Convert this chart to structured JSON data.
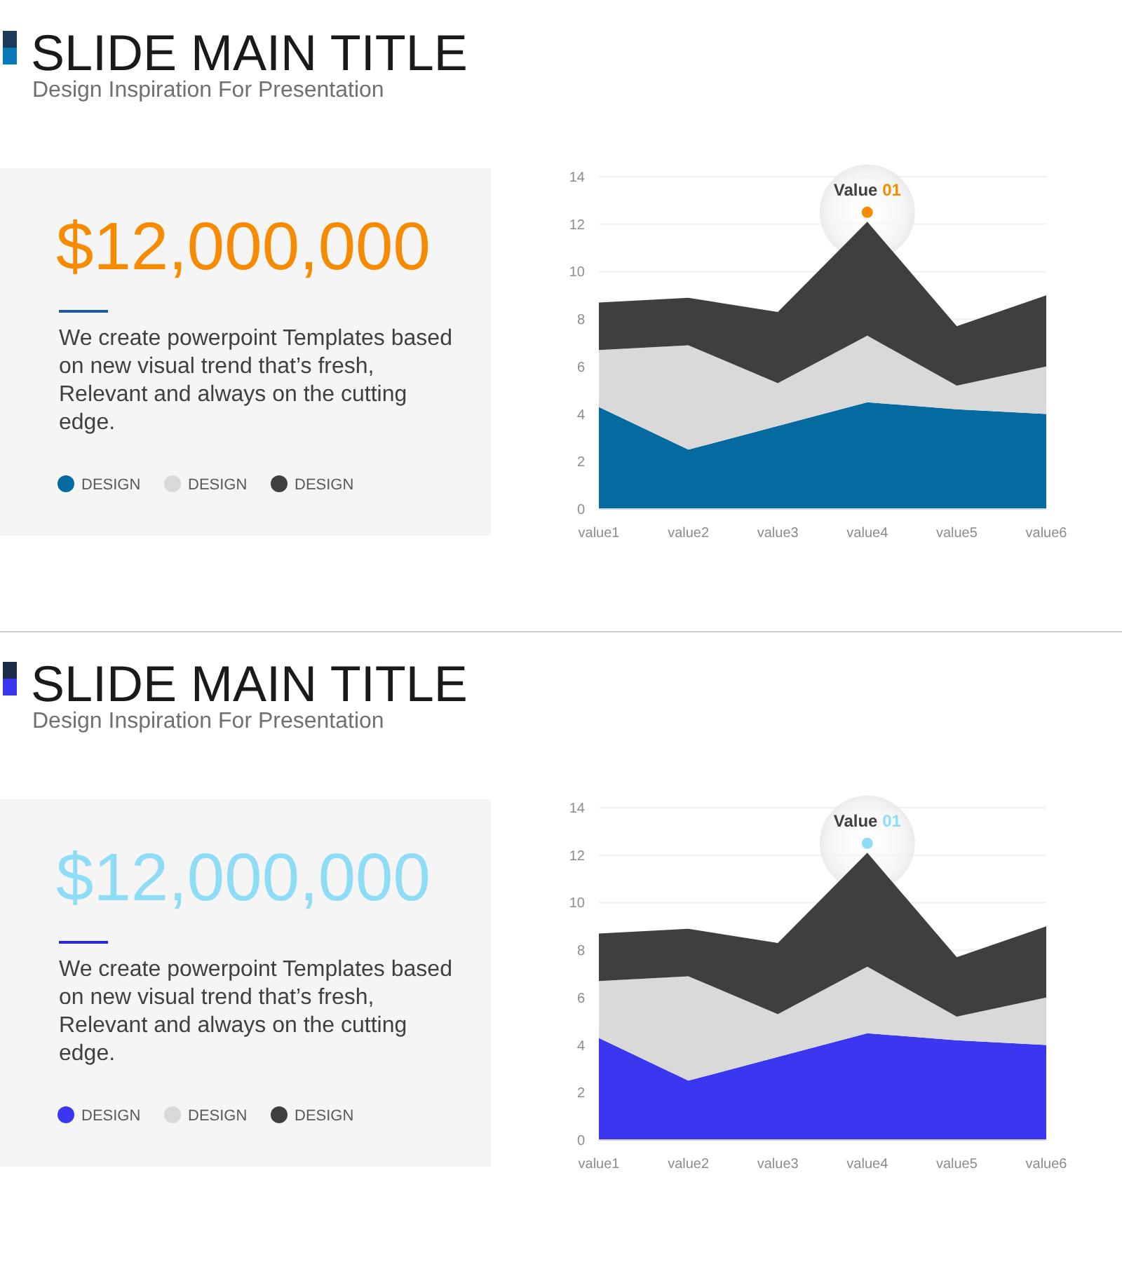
{
  "chart_data": [
    {
      "type": "area",
      "title": "SLIDE MAIN TITLE",
      "stacked": true,
      "categories": [
        "value1",
        "value2",
        "value3",
        "value4",
        "value5",
        "value6"
      ],
      "series": [
        {
          "name": "DESIGN",
          "color": "#046a9f",
          "values": [
            4.3,
            2.5,
            3.5,
            4.5,
            4.2,
            4.0
          ]
        },
        {
          "name": "DESIGN",
          "color": "#d9d9d9",
          "values": [
            2.4,
            4.4,
            1.8,
            2.8,
            1.0,
            2.0
          ]
        },
        {
          "name": "DESIGN",
          "color": "#3f3f3f",
          "values": [
            2.0,
            2.0,
            3.0,
            4.8,
            2.5,
            3.0
          ]
        }
      ],
      "ylim": [
        0,
        14
      ],
      "yticks": [
        0,
        2,
        4,
        6,
        8,
        10,
        12,
        14
      ],
      "grid": "y",
      "legend": "left",
      "annotations": [
        "Design Inspiration For Presentation",
        "$12,000,000",
        "We create powerpoint Templates based on new visual trend that’s fresh, Relevant and always on the cutting edge.",
        {
          "text": "Value 01",
          "x": "value4",
          "y": 12.5
        }
      ]
    },
    {
      "type": "area",
      "title": "SLIDE MAIN TITLE",
      "stacked": true,
      "categories": [
        "value1",
        "value2",
        "value3",
        "value4",
        "value5",
        "value6"
      ],
      "series": [
        {
          "name": "DESIGN",
          "color": "#3b37f0",
          "values": [
            4.3,
            2.5,
            3.5,
            4.5,
            4.2,
            4.0
          ]
        },
        {
          "name": "DESIGN",
          "color": "#d9d9d9",
          "values": [
            2.4,
            4.4,
            1.8,
            2.8,
            1.0,
            2.0
          ]
        },
        {
          "name": "DESIGN",
          "color": "#3f3f3f",
          "values": [
            2.0,
            2.0,
            3.0,
            4.8,
            2.5,
            3.0
          ]
        }
      ],
      "ylim": [
        0,
        14
      ],
      "yticks": [
        0,
        2,
        4,
        6,
        8,
        10,
        12,
        14
      ],
      "grid": "y",
      "legend": "left",
      "annotations": [
        "Design Inspiration For Presentation",
        "$12,000,000",
        "We create powerpoint Templates based on new visual trend that’s fresh, Relevant and always on the cutting edge.",
        {
          "text": "Value 01",
          "x": "value4",
          "y": 12.5
        }
      ]
    }
  ]
}
